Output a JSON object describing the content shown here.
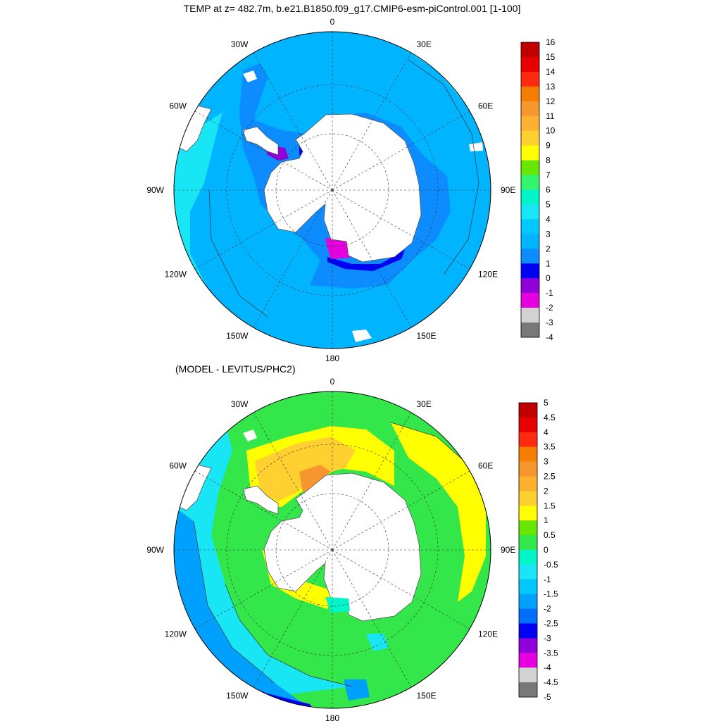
{
  "titles": {
    "top": "TEMP at z= 482.7m, b.e21.B1850.f09_g17.CMIP6-esm-piControl.001 [1-100]",
    "bottom": "(MODEL - LEVITUS/PHC2)"
  },
  "map_labels": [
    "0",
    "30E",
    "60E",
    "90E",
    "120E",
    "150E",
    "180",
    "150W",
    "120W",
    "90W",
    "60W",
    "30W"
  ],
  "top_colorbar": {
    "labels": [
      "16",
      "15",
      "14",
      "13",
      "12",
      "11",
      "10",
      "9",
      "8",
      "7",
      "6",
      "5",
      "4",
      "3",
      "2",
      "1",
      "0",
      "-1",
      "-2",
      "-3",
      "-4"
    ],
    "colors": [
      "#c00000",
      "#e60000",
      "#ff2a0f",
      "#f57e00",
      "#f5962e",
      "#ffb030",
      "#ffd030",
      "#ffff00",
      "#66e600",
      "#33f56e",
      "#00f5c8",
      "#19e6f5",
      "#00c8ff",
      "#00b4ff",
      "#0c8cff",
      "#0000f5",
      "#9100d8",
      "#e600e0",
      "#d2d2d2",
      "#787878"
    ]
  },
  "bottom_colorbar": {
    "labels": [
      "5",
      "4.5",
      "4",
      "3.5",
      "3",
      "2.5",
      "2",
      "1.5",
      "1",
      "0.5",
      "0",
      "-0.5",
      "-1",
      "-1.5",
      "-2",
      "-2.5",
      "-3",
      "-3.5",
      "-4",
      "-4.5",
      "-5"
    ],
    "colors": [
      "#c00000",
      "#e60000",
      "#ff2a0f",
      "#f57e00",
      "#f5962e",
      "#ffb030",
      "#ffd030",
      "#ffff00",
      "#66e600",
      "#33e64a",
      "#00f5c8",
      "#19e6f5",
      "#00c8ff",
      "#00a0ff",
      "#006eff",
      "#0000f5",
      "#9100d8",
      "#e600e0",
      "#d2d2d2",
      "#787878"
    ]
  },
  "top_map": {
    "ocean_base_color": "#0ab4ff",
    "regions": [
      {
        "name": "antarctic-margin",
        "value": "1 to 2",
        "color": "#0c8cff"
      },
      {
        "name": "open-ocean",
        "value": "2 to 3",
        "color": "#00b4ff"
      },
      {
        "name": "northern-rim",
        "value": "3 to 4",
        "color": "#19e6f5"
      },
      {
        "name": "shelf-cold-pockets",
        "value": "-1 to 0",
        "color": "#9100d8"
      }
    ]
  },
  "bottom_map": {
    "regions": [
      {
        "name": "weddell-warm-anomaly",
        "value": "1.5 to 3",
        "color": "#ffd030"
      },
      {
        "name": "circumpolar-band",
        "value": "0 to 1",
        "color": "#33e64a"
      },
      {
        "name": "indian-sector",
        "value": "1 to 1.5",
        "color": "#ffff00"
      },
      {
        "name": "pacific-cold-anomaly",
        "value": "-2 to -0.5",
        "color": "#0c8cff"
      },
      {
        "name": "deep-cold-anomaly",
        "value": "-3 to -2.5",
        "color": "#0000f5"
      }
    ]
  }
}
